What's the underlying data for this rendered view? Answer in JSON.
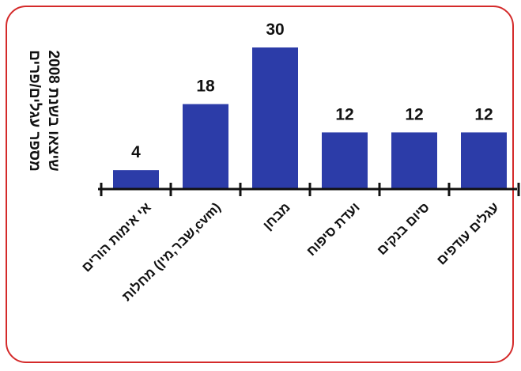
{
  "chart_data": {
    "type": "bar",
    "title": "",
    "ylabel_line1": "מספר עגלים/פרים",
    "ylabel_line2": "שיצאו בשנת 2008",
    "categories": [
      "אי אימות הורים",
      "מחלות (שבר,מין,cvm)",
      "מבחן",
      "ועדת סיפוח",
      "סיום בנקים",
      "עגלים עודפים"
    ],
    "values": [
      4,
      18,
      30,
      12,
      12,
      12
    ],
    "ylim": [
      0,
      30
    ],
    "grid": false,
    "legend": "none",
    "colors": {
      "bar": "#2c3ca8",
      "axis": "#111111",
      "frame": "#d42a2a"
    }
  }
}
